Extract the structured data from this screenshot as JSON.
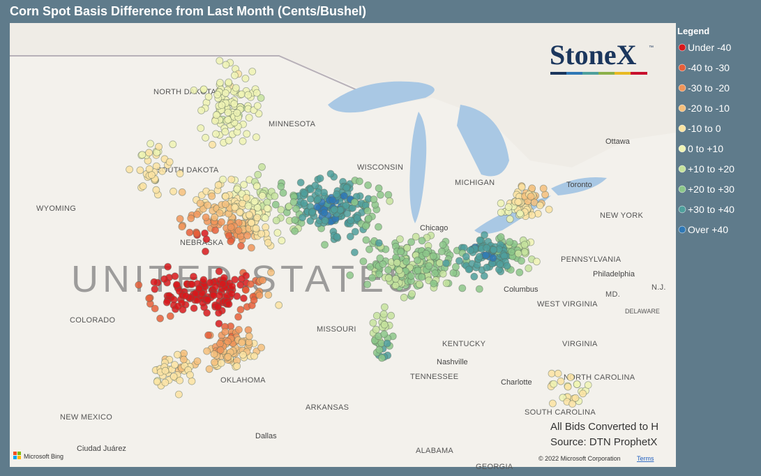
{
  "header": {
    "title": "Corn Spot Basis Difference from Last Month (Cents/Bushel)"
  },
  "legend": {
    "title": "Legend",
    "items": [
      {
        "label": "Under -40",
        "color": "#d7191c"
      },
      {
        "label": "-40 to -30",
        "color": "#e65f3a"
      },
      {
        "label": "-30 to -20",
        "color": "#f0955a"
      },
      {
        "label": "-20 to -10",
        "color": "#f5bf7d"
      },
      {
        "label": "-10 to 0",
        "color": "#fbe3a2"
      },
      {
        "label": "0 to +10",
        "color": "#eff3b4"
      },
      {
        "label": "+10 to +20",
        "color": "#c6e39d"
      },
      {
        "label": "+20 to +30",
        "color": "#8cc78a"
      },
      {
        "label": "+30 to +40",
        "color": "#4f9f9c"
      },
      {
        "label": "Over +40",
        "color": "#2f78b5"
      }
    ]
  },
  "logo": {
    "text": "StoneX",
    "mark": "™"
  },
  "notes": [
    "All Bids Converted to H",
    "Source: DTN ProphetX"
  ],
  "map": {
    "labels": [
      "NORTH DAKOTA",
      "MINNESOTA",
      "SOUTH DAKOTA",
      "WISCONSIN",
      "WYOMING",
      "NEBRASKA",
      "UNITED STATES",
      "COLORADO",
      "MISSOURI",
      "KENTUCKY",
      "WEST VIRGINIA",
      "VIRGINIA",
      "OKLAHOMA",
      "TENNESSEE",
      "ARKANSAS",
      "NORTH CAROLINA",
      "SOUTH CAROLINA",
      "NEW MEXICO",
      "ALABAMA",
      "PENNSYLVANIA",
      "NEW YORK",
      "MICHIGAN",
      "Chicago",
      "Columbus",
      "Nashville",
      "Charlotte",
      "Dallas",
      "Ottawa",
      "Toronto",
      "Philadelphia",
      "Ciudad Juárez",
      "MD.",
      "N.J.",
      "DELAWARE",
      "GEORGIA"
    ],
    "attribution": "Microsoft Bing",
    "copyright": "© 2022 Microsoft Corporation",
    "terms": "Terms"
  }
}
